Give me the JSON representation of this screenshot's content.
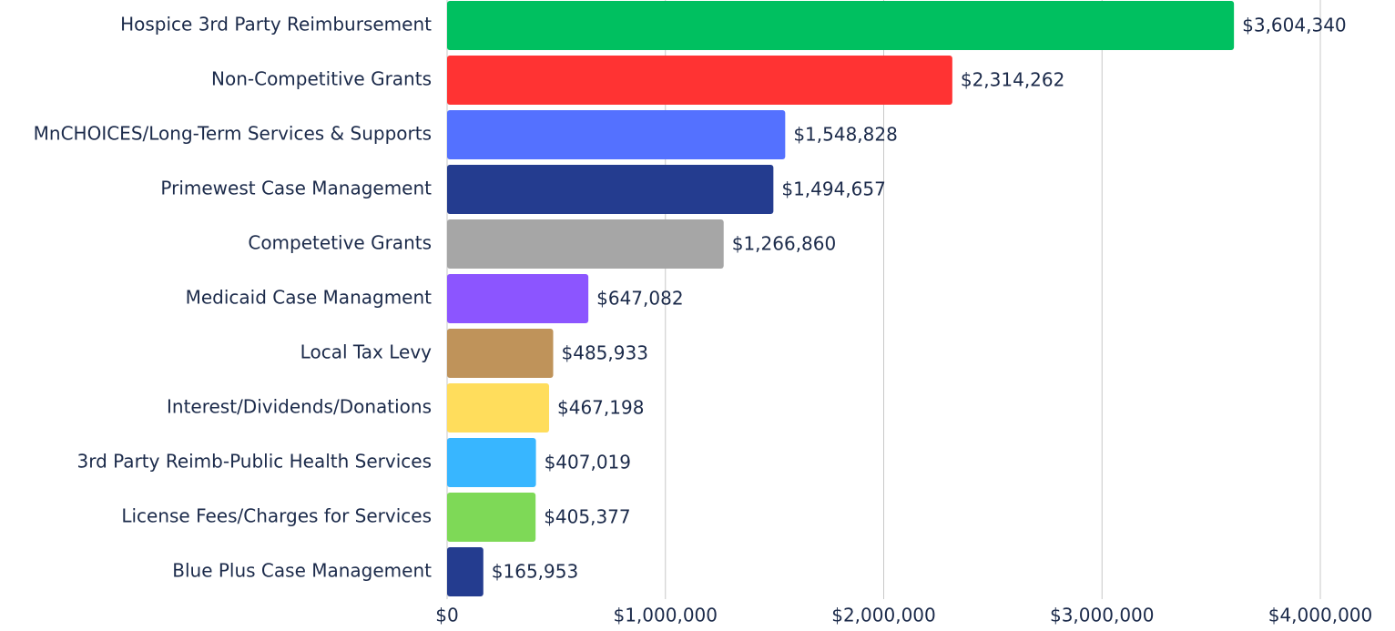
{
  "chart_data": {
    "type": "hbar",
    "categories": [
      "Hospice 3rd Party Reimbursement",
      "Non-Competitive Grants",
      "MnCHOICES/Long-Term Services & Supports",
      "Primewest Case Management",
      "Competetive Grants",
      "Medicaid Case Managment",
      "Local Tax Levy",
      "Interest/Dividends/Donations",
      "3rd Party Reimb-Public Health Services",
      "License Fees/Charges for Services",
      "Blue Plus Case Management"
    ],
    "values": [
      3604340,
      2314262,
      1548828,
      1494657,
      1266860,
      647082,
      485933,
      467198,
      407019,
      405377,
      165953
    ],
    "value_labels": [
      "$3,604,340",
      "$2,314,262",
      "$1,548,828",
      "$1,494,657",
      "$1,266,860",
      "$647,082",
      "$485,933",
      "$467,198",
      "$407,019",
      "$405,377",
      "$165,953"
    ],
    "colors": [
      "#00c060",
      "#ff3333",
      "#5471ff",
      "#243c8f",
      "#a6a6a6",
      "#8c55ff",
      "#bf935a",
      "#ffdd5c",
      "#38b6ff",
      "#7ed957",
      "#243c8f"
    ],
    "xlim": [
      0,
      4000000
    ],
    "xticks": [
      {
        "value": 0,
        "label": "$0"
      },
      {
        "value": 1000000,
        "label": "$1,000,000"
      },
      {
        "value": 2000000,
        "label": "$2,000,000"
      },
      {
        "value": 3000000,
        "label": "$3,000,000"
      },
      {
        "value": 4000000,
        "label": "$4,000,000"
      }
    ],
    "grid": true
  }
}
